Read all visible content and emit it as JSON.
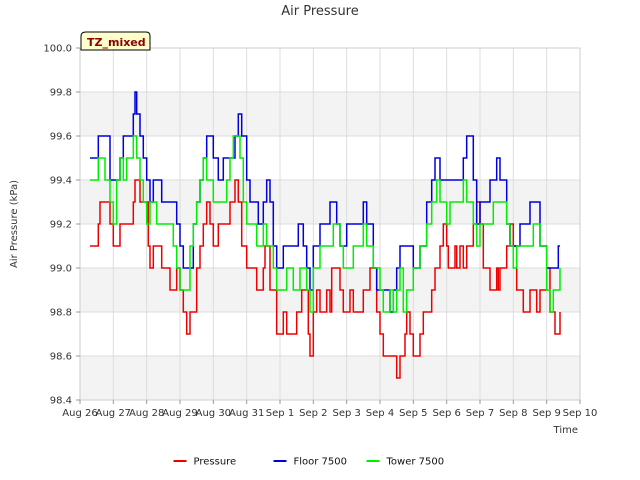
{
  "chart_data": {
    "type": "line",
    "title": "Air Pressure",
    "xlabel": "Time",
    "ylabel": "Air Pressure (kPa)",
    "ylim": [
      98.4,
      100.0
    ],
    "xlim": [
      0,
      15
    ],
    "y_ticks": [
      "98.4",
      "98.6",
      "98.8",
      "99.0",
      "99.2",
      "99.4",
      "99.6",
      "99.8",
      "100.0"
    ],
    "x_ticks": [
      "Aug 26",
      "Aug 27",
      "Aug 28",
      "Aug 29",
      "Aug 30",
      "Aug 31",
      "Sep 1",
      "Sep 2",
      "Sep 3",
      "Sep 4",
      "Sep 5",
      "Sep 6",
      "Sep 7",
      "Sep 8",
      "Sep 9",
      "Sep 10"
    ],
    "annotation": "TZ_mixed",
    "grid": true,
    "legend_position": "bottom",
    "series": [
      {
        "name": "Pressure",
        "color": "#ee0000",
        "x": [
          0.3,
          0.55,
          0.6,
          0.8,
          0.9,
          1.0,
          1.2,
          1.3,
          1.6,
          1.65,
          1.8,
          2.05,
          2.1,
          2.2,
          2.45,
          2.5,
          2.7,
          2.9,
          3.0,
          3.1,
          3.2,
          3.3,
          3.5,
          3.6,
          3.7,
          3.8,
          3.9,
          4.0,
          4.15,
          4.3,
          4.4,
          4.5,
          4.65,
          4.75,
          4.85,
          5.0,
          5.3,
          5.5,
          5.55,
          5.7,
          5.9,
          6.0,
          6.1,
          6.2,
          6.35,
          6.5,
          6.55,
          6.65,
          6.85,
          6.9,
          7.0,
          7.1,
          7.2,
          7.3,
          7.4,
          7.5,
          7.55,
          7.7,
          7.8,
          7.9,
          8.0,
          8.1,
          8.2,
          8.3,
          8.4,
          8.5,
          8.7,
          8.9,
          9.0,
          9.1,
          9.25,
          9.3,
          9.4,
          9.5,
          9.6,
          9.65,
          9.75,
          9.8,
          9.9,
          10.0,
          10.1,
          10.2,
          10.3,
          10.45,
          10.55,
          10.65,
          10.8,
          10.9,
          11.0,
          11.05,
          11.2,
          11.25,
          11.3,
          11.4,
          11.5,
          11.6,
          11.8,
          11.9,
          12.0,
          12.1,
          12.3,
          12.5,
          12.55,
          12.6,
          12.7,
          12.8,
          12.9,
          13.0,
          13.1,
          13.3,
          13.5,
          13.7,
          13.8,
          14.0,
          14.1,
          14.25,
          14.35,
          14.4
        ],
        "y": [
          99.1,
          99.2,
          99.3,
          99.3,
          99.2,
          99.1,
          99.2,
          99.2,
          99.3,
          99.4,
          99.3,
          99.1,
          99.0,
          99.1,
          99.0,
          99.0,
          98.9,
          99.0,
          98.9,
          98.8,
          98.7,
          98.8,
          99.0,
          99.1,
          99.2,
          99.3,
          99.2,
          99.1,
          99.2,
          99.2,
          99.2,
          99.3,
          99.4,
          99.3,
          99.1,
          99.0,
          98.9,
          99.0,
          99.1,
          98.9,
          98.7,
          98.7,
          98.8,
          98.7,
          98.7,
          98.8,
          98.8,
          98.9,
          98.7,
          98.6,
          98.8,
          98.9,
          98.8,
          98.8,
          98.9,
          98.8,
          99.0,
          99.0,
          98.9,
          98.8,
          98.8,
          98.9,
          98.8,
          98.8,
          98.8,
          98.9,
          99.0,
          98.8,
          98.7,
          98.6,
          98.6,
          98.6,
          98.6,
          98.5,
          98.6,
          98.6,
          98.7,
          98.8,
          98.7,
          98.6,
          98.6,
          98.7,
          98.8,
          98.8,
          98.9,
          99.0,
          99.1,
          99.2,
          99.1,
          99.0,
          99.0,
          99.1,
          99.0,
          99.1,
          99.0,
          99.1,
          99.2,
          99.3,
          99.2,
          99.0,
          98.9,
          99.0,
          98.9,
          99.0,
          99.0,
          99.1,
          99.2,
          99.1,
          98.9,
          98.8,
          98.9,
          98.8,
          98.9,
          99.0,
          98.8,
          98.7,
          98.7,
          98.8
        ]
      },
      {
        "name": "Floor 7500",
        "color": "#0000dd",
        "x": [
          0.3,
          0.55,
          0.8,
          0.9,
          1.1,
          1.2,
          1.3,
          1.6,
          1.65,
          1.7,
          1.8,
          1.9,
          2.0,
          2.1,
          2.2,
          2.45,
          2.6,
          2.8,
          2.9,
          3.0,
          3.1,
          3.2,
          3.4,
          3.5,
          3.6,
          3.7,
          3.8,
          3.9,
          4.0,
          4.15,
          4.25,
          4.3,
          4.5,
          4.65,
          4.75,
          4.85,
          5.0,
          5.1,
          5.3,
          5.35,
          5.5,
          5.6,
          5.7,
          5.8,
          5.9,
          6.1,
          6.2,
          6.5,
          6.55,
          6.7,
          6.8,
          6.9,
          7.0,
          7.2,
          7.4,
          7.5,
          7.7,
          7.8,
          8.0,
          8.2,
          8.3,
          8.5,
          8.6,
          8.8,
          8.9,
          9.0,
          9.1,
          9.2,
          9.3,
          9.4,
          9.5,
          9.6,
          9.7,
          10.0,
          10.2,
          10.4,
          10.55,
          10.65,
          10.8,
          11.0,
          11.1,
          11.2,
          11.5,
          11.6,
          11.8,
          11.9,
          12.0,
          12.1,
          12.3,
          12.5,
          12.6,
          12.8,
          12.9,
          13.0,
          13.2,
          13.5,
          13.8,
          14.0,
          14.1,
          14.3,
          14.35,
          14.4
        ],
        "y": [
          99.5,
          99.6,
          99.6,
          99.4,
          99.4,
          99.5,
          99.6,
          99.7,
          99.8,
          99.7,
          99.6,
          99.5,
          99.4,
          99.3,
          99.4,
          99.3,
          99.3,
          99.3,
          99.2,
          99.1,
          99.0,
          99.0,
          99.2,
          99.3,
          99.4,
          99.5,
          99.6,
          99.6,
          99.5,
          99.4,
          99.4,
          99.5,
          99.5,
          99.6,
          99.7,
          99.6,
          99.4,
          99.3,
          99.3,
          99.2,
          99.3,
          99.4,
          99.3,
          99.1,
          99.0,
          99.1,
          99.1,
          99.1,
          99.2,
          99.1,
          99.0,
          98.9,
          99.1,
          99.2,
          99.2,
          99.3,
          99.2,
          99.1,
          99.2,
          99.2,
          99.2,
          99.3,
          99.2,
          99.0,
          98.9,
          98.9,
          98.9,
          98.9,
          98.8,
          98.9,
          99.0,
          99.1,
          99.1,
          99.0,
          99.1,
          99.3,
          99.4,
          99.5,
          99.4,
          99.4,
          99.4,
          99.4,
          99.5,
          99.6,
          99.4,
          99.2,
          99.3,
          99.3,
          99.4,
          99.5,
          99.4,
          99.2,
          99.1,
          99.1,
          99.2,
          99.3,
          99.1,
          99.0,
          99.0,
          99.0,
          99.1,
          99.1
        ]
      },
      {
        "name": "Tower 7500",
        "color": "#00ee00",
        "x": [
          0.3,
          0.55,
          0.75,
          0.9,
          1.0,
          1.1,
          1.2,
          1.3,
          1.4,
          1.5,
          1.6,
          1.7,
          1.8,
          1.9,
          2.0,
          2.1,
          2.3,
          2.5,
          2.7,
          2.8,
          2.9,
          3.0,
          3.2,
          3.3,
          3.4,
          3.5,
          3.6,
          3.7,
          3.8,
          3.9,
          4.0,
          4.2,
          4.4,
          4.5,
          4.6,
          4.7,
          4.8,
          4.9,
          5.0,
          5.3,
          5.5,
          5.6,
          5.8,
          5.9,
          6.0,
          6.2,
          6.4,
          6.6,
          6.8,
          6.9,
          7.0,
          7.2,
          7.5,
          7.6,
          7.7,
          7.8,
          7.9,
          8.0,
          8.2,
          8.4,
          8.5,
          8.6,
          8.8,
          9.0,
          9.1,
          9.2,
          9.3,
          9.4,
          9.5,
          9.6,
          9.7,
          9.8,
          10.0,
          10.2,
          10.4,
          10.55,
          10.7,
          10.8,
          11.0,
          11.1,
          11.3,
          11.5,
          11.6,
          11.8,
          11.9,
          12.0,
          12.2,
          12.4,
          12.6,
          12.8,
          12.9,
          13.0,
          13.1,
          13.3,
          13.6,
          13.8,
          14.0,
          14.1,
          14.2,
          14.4
        ],
        "y": [
          99.4,
          99.5,
          99.4,
          99.3,
          99.2,
          99.4,
          99.5,
          99.4,
          99.5,
          99.5,
          99.6,
          99.5,
          99.4,
          99.3,
          99.2,
          99.3,
          99.2,
          99.2,
          99.2,
          99.1,
          99.0,
          98.9,
          98.9,
          99.1,
          99.2,
          99.3,
          99.4,
          99.5,
          99.4,
          99.4,
          99.3,
          99.3,
          99.4,
          99.5,
          99.6,
          99.6,
          99.5,
          99.3,
          99.2,
          99.1,
          99.2,
          99.1,
          99.0,
          98.9,
          98.9,
          99.0,
          98.9,
          99.0,
          98.9,
          98.8,
          99.0,
          99.1,
          99.1,
          99.2,
          99.2,
          99.1,
          99.0,
          99.0,
          99.1,
          99.1,
          99.2,
          99.1,
          99.0,
          98.9,
          98.8,
          98.8,
          98.9,
          98.8,
          98.9,
          99.0,
          98.8,
          98.9,
          99.0,
          99.1,
          99.2,
          99.3,
          99.4,
          99.3,
          99.2,
          99.3,
          99.3,
          99.4,
          99.3,
          99.2,
          99.1,
          99.2,
          99.2,
          99.3,
          99.3,
          99.2,
          99.1,
          99.0,
          99.1,
          99.1,
          99.2,
          99.1,
          98.9,
          98.8,
          98.9,
          99.0
        ]
      }
    ]
  }
}
